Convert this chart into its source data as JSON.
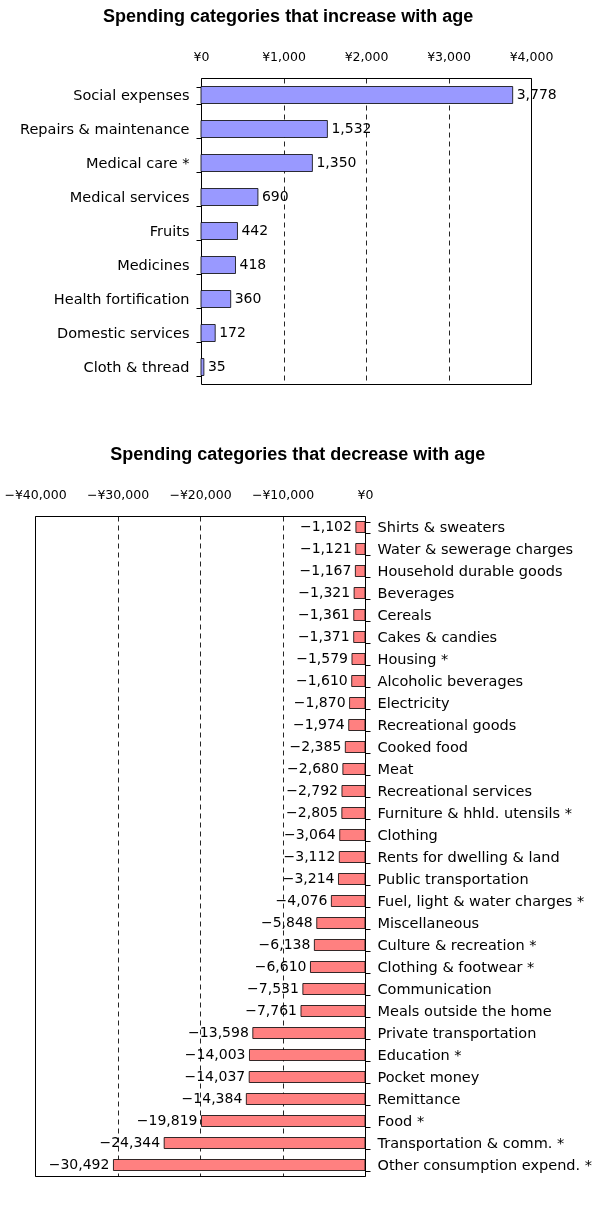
{
  "chart_data": [
    {
      "type": "bar",
      "title": "Spending categories that increase with age",
      "orientation": "horizontal",
      "categories": [
        "Social expenses",
        "Repairs & maintenance",
        "Medical care *",
        "Medical services",
        "Fruits",
        "Medicines",
        "Health fortification",
        "Domestic services",
        "Cloth & thread"
      ],
      "values": [
        3778,
        1532,
        1350,
        690,
        442,
        418,
        360,
        172,
        35
      ],
      "color": "#9999ff",
      "value_labels": [
        "3,778",
        "1,532",
        "1,350",
        "690",
        "442",
        "418",
        "360",
        "172",
        "35"
      ],
      "xlim": [
        0,
        4000
      ],
      "xticks": [
        {
          "value": 0,
          "label": "¥0"
        },
        {
          "value": 1000,
          "label": "¥1,000"
        },
        {
          "value": 2000,
          "label": "¥2,000"
        },
        {
          "value": 3000,
          "label": "¥3,000"
        },
        {
          "value": 4000,
          "label": "¥4,000"
        }
      ],
      "grid": "x"
    },
    {
      "type": "bar",
      "title": "Spending categories that decrease with age",
      "orientation": "horizontal",
      "categories": [
        "Shirts & sweaters",
        "Water & sewerage charges",
        "Household durable goods",
        "Beverages",
        "Cereals",
        "Cakes & candies",
        "Housing *",
        "Alcoholic beverages",
        "Electricity",
        "Recreational goods",
        "Cooked food",
        "Meat",
        "Recreational services",
        "Furniture & hhld. utensils *",
        "Clothing",
        "Rents for dwelling & land",
        "Public transportation",
        "Fuel, light & water charges *",
        "Miscellaneous",
        "Culture & recreation *",
        "Clothing & footwear *",
        "Communication",
        "Meals outside the home",
        "Private transportation",
        "Education *",
        "Pocket money",
        "Remittance",
        "Food *",
        "Transportation & comm. *",
        "Other consumption expend. *"
      ],
      "values": [
        -1102,
        -1121,
        -1167,
        -1321,
        -1361,
        -1371,
        -1579,
        -1610,
        -1870,
        -1974,
        -2385,
        -2680,
        -2792,
        -2805,
        -3064,
        -3112,
        -3214,
        -4076,
        -5848,
        -6138,
        -6610,
        -7531,
        -7761,
        -13598,
        -14003,
        -14037,
        -14384,
        -19819,
        -24344,
        -30492
      ],
      "color": "#ff8080",
      "value_labels": [
        "−1,102",
        "−1,121",
        "−1,167",
        "−1,321",
        "−1,361",
        "−1,371",
        "−1,579",
        "−1,610",
        "−1,870",
        "−1,974",
        "−2,385",
        "−2,680",
        "−2,792",
        "−2,805",
        "−3,064",
        "−3,112",
        "−3,214",
        "−4,076",
        "−5,848",
        "−6,138",
        "−6,610",
        "−7,531",
        "−7,761",
        "−13,598",
        "−14,003",
        "−14,037",
        "−14,384",
        "−19,819",
        "−24,344",
        "−30,492"
      ],
      "xlim": [
        -40000,
        0
      ],
      "xticks": [
        {
          "value": -40000,
          "label": "−¥40,000"
        },
        {
          "value": -30000,
          "label": "−¥30,000"
        },
        {
          "value": -20000,
          "label": "−¥20,000"
        },
        {
          "value": -10000,
          "label": "−¥10,000"
        },
        {
          "value": 0,
          "label": "¥0"
        }
      ],
      "grid": "x"
    }
  ]
}
